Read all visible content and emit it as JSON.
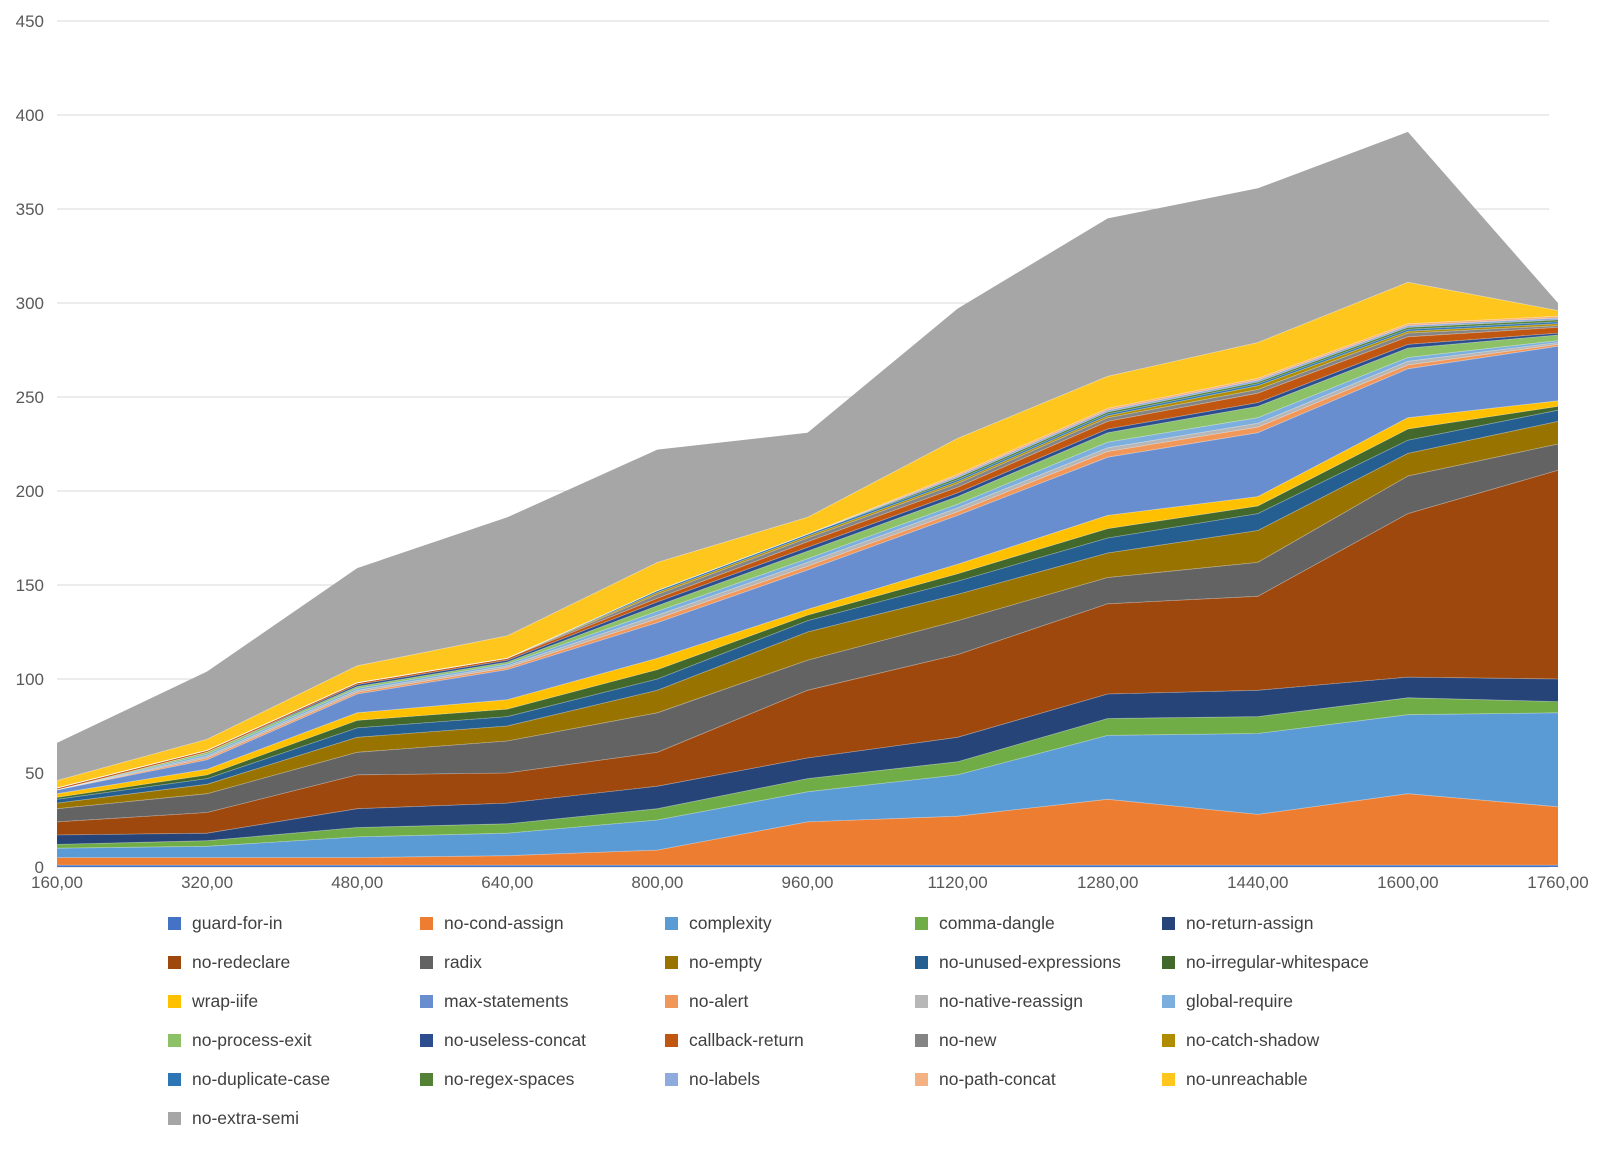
{
  "chart_data": {
    "type": "area",
    "stacked": true,
    "title": "",
    "xlabel": "",
    "ylabel": "",
    "grid": true,
    "legend_position": "bottom",
    "ylim": [
      0,
      450
    ],
    "y_ticks": [
      0,
      50,
      100,
      150,
      200,
      250,
      300,
      350,
      400,
      450
    ],
    "x_labels": [
      "160,00",
      "320,00",
      "480,00",
      "640,00",
      "800,00",
      "960,00",
      "1120,00",
      "1280,00",
      "1440,00",
      "1600,00",
      "1760,00"
    ],
    "x_values": [
      160,
      320,
      480,
      640,
      800,
      960,
      1120,
      1280,
      1440,
      1600,
      1760
    ],
    "colors": {
      "axis_text": "#595959",
      "legend_text": "#404040",
      "gridline": "#D9D9D9",
      "background": "#FFFFFF"
    },
    "series": [
      {
        "name": "guard-for-in",
        "color": "#4472C4",
        "values": [
          1,
          1,
          1,
          1,
          1,
          1,
          1,
          1,
          1,
          1,
          1
        ]
      },
      {
        "name": "no-cond-assign",
        "color": "#ED7D31",
        "values": [
          4,
          4,
          4,
          5,
          8,
          23,
          26,
          35,
          27,
          38,
          31
        ]
      },
      {
        "name": "complexity",
        "color": "#5B9BD5",
        "values": [
          5,
          6,
          11,
          12,
          16,
          16,
          22,
          34,
          43,
          42,
          50
        ]
      },
      {
        "name": "comma-dangle",
        "color": "#70AD47",
        "values": [
          2,
          3,
          5,
          5,
          6,
          7,
          7,
          9,
          9,
          9,
          6
        ]
      },
      {
        "name": "no-return-assign",
        "color": "#264478",
        "values": [
          5,
          4,
          10,
          11,
          12,
          11,
          13,
          13,
          14,
          11,
          12
        ]
      },
      {
        "name": "no-redeclare",
        "color": "#9E480E",
        "values": [
          7,
          11,
          18,
          16,
          18,
          36,
          44,
          48,
          50,
          87,
          111
        ]
      },
      {
        "name": "radix",
        "color": "#636363",
        "values": [
          7,
          10,
          12,
          17,
          21,
          16,
          18,
          14,
          18,
          20,
          14
        ]
      },
      {
        "name": "no-empty",
        "color": "#997300",
        "values": [
          3,
          5,
          8,
          8,
          12,
          15,
          14,
          13,
          17,
          12,
          12
        ]
      },
      {
        "name": "no-unused-expressions",
        "color": "#255E91",
        "values": [
          2,
          3,
          5,
          5,
          6,
          6,
          7,
          8,
          9,
          7,
          6
        ]
      },
      {
        "name": "no-irregular-whitespace",
        "color": "#43682B",
        "values": [
          1,
          2,
          4,
          4,
          5,
          3,
          4,
          5,
          4,
          6,
          2
        ]
      },
      {
        "name": "wrap-iife",
        "color": "#FFC000",
        "values": [
          2,
          3,
          4,
          5,
          6,
          3,
          5,
          7,
          5,
          6,
          3
        ]
      },
      {
        "name": "max-statements",
        "color": "#698ED0",
        "values": [
          2,
          5,
          10,
          16,
          19,
          21,
          26,
          31,
          34,
          26,
          29
        ]
      },
      {
        "name": "no-alert",
        "color": "#F1975A",
        "values": [
          0,
          1,
          1,
          1,
          2,
          2,
          2,
          3,
          3,
          2,
          1
        ]
      },
      {
        "name": "no-native-reassign",
        "color": "#B7B7B7",
        "values": [
          0,
          1,
          1,
          1,
          2,
          2,
          2,
          2,
          2,
          2,
          1
        ]
      },
      {
        "name": "global-require",
        "color": "#7CAFDD",
        "values": [
          0,
          1,
          1,
          1,
          2,
          2,
          2,
          3,
          3,
          2,
          1
        ]
      },
      {
        "name": "no-process-exit",
        "color": "#8CC168",
        "values": [
          0,
          1,
          1,
          1,
          3,
          4,
          4,
          5,
          6,
          5,
          3
        ]
      },
      {
        "name": "no-useless-concat",
        "color": "#2D4E8E",
        "values": [
          0,
          0,
          1,
          1,
          2,
          2,
          2,
          2,
          2,
          2,
          1
        ]
      },
      {
        "name": "callback-return",
        "color": "#C15610",
        "values": [
          1,
          1,
          1,
          1,
          2,
          3,
          3,
          4,
          5,
          4,
          3
        ]
      },
      {
        "name": "no-new",
        "color": "#848484",
        "values": [
          0,
          0,
          0,
          0,
          2,
          2,
          2,
          2,
          2,
          2,
          1
        ]
      },
      {
        "name": "no-catch-shadow",
        "color": "#B08C00",
        "values": [
          0,
          0,
          0,
          0,
          1,
          1,
          1,
          1,
          2,
          1,
          1
        ]
      },
      {
        "name": "no-duplicate-case",
        "color": "#2E75B6",
        "values": [
          0,
          0,
          0,
          0,
          1,
          1,
          1,
          1,
          1,
          1,
          1
        ]
      },
      {
        "name": "no-regex-spaces",
        "color": "#538135",
        "values": [
          0,
          0,
          0,
          0,
          0,
          0,
          1,
          1,
          1,
          1,
          1
        ]
      },
      {
        "name": "no-labels",
        "color": "#8FAADC",
        "values": [
          0,
          0,
          0,
          0,
          0,
          0,
          1,
          1,
          1,
          1,
          1
        ]
      },
      {
        "name": "no-path-concat",
        "color": "#F4B183",
        "values": [
          0,
          0,
          0,
          0,
          0,
          0,
          1,
          1,
          1,
          1,
          1
        ]
      },
      {
        "name": "no-unreachable",
        "color": "#FFC61E",
        "values": [
          4,
          6,
          9,
          12,
          15,
          9,
          19,
          17,
          19,
          22,
          3
        ]
      },
      {
        "name": "no-extra-semi",
        "color": "#A6A6A6",
        "values": [
          20,
          36,
          52,
          63,
          60,
          45,
          69,
          84,
          82,
          80,
          4
        ]
      }
    ]
  },
  "legend": {
    "columns": 5
  }
}
